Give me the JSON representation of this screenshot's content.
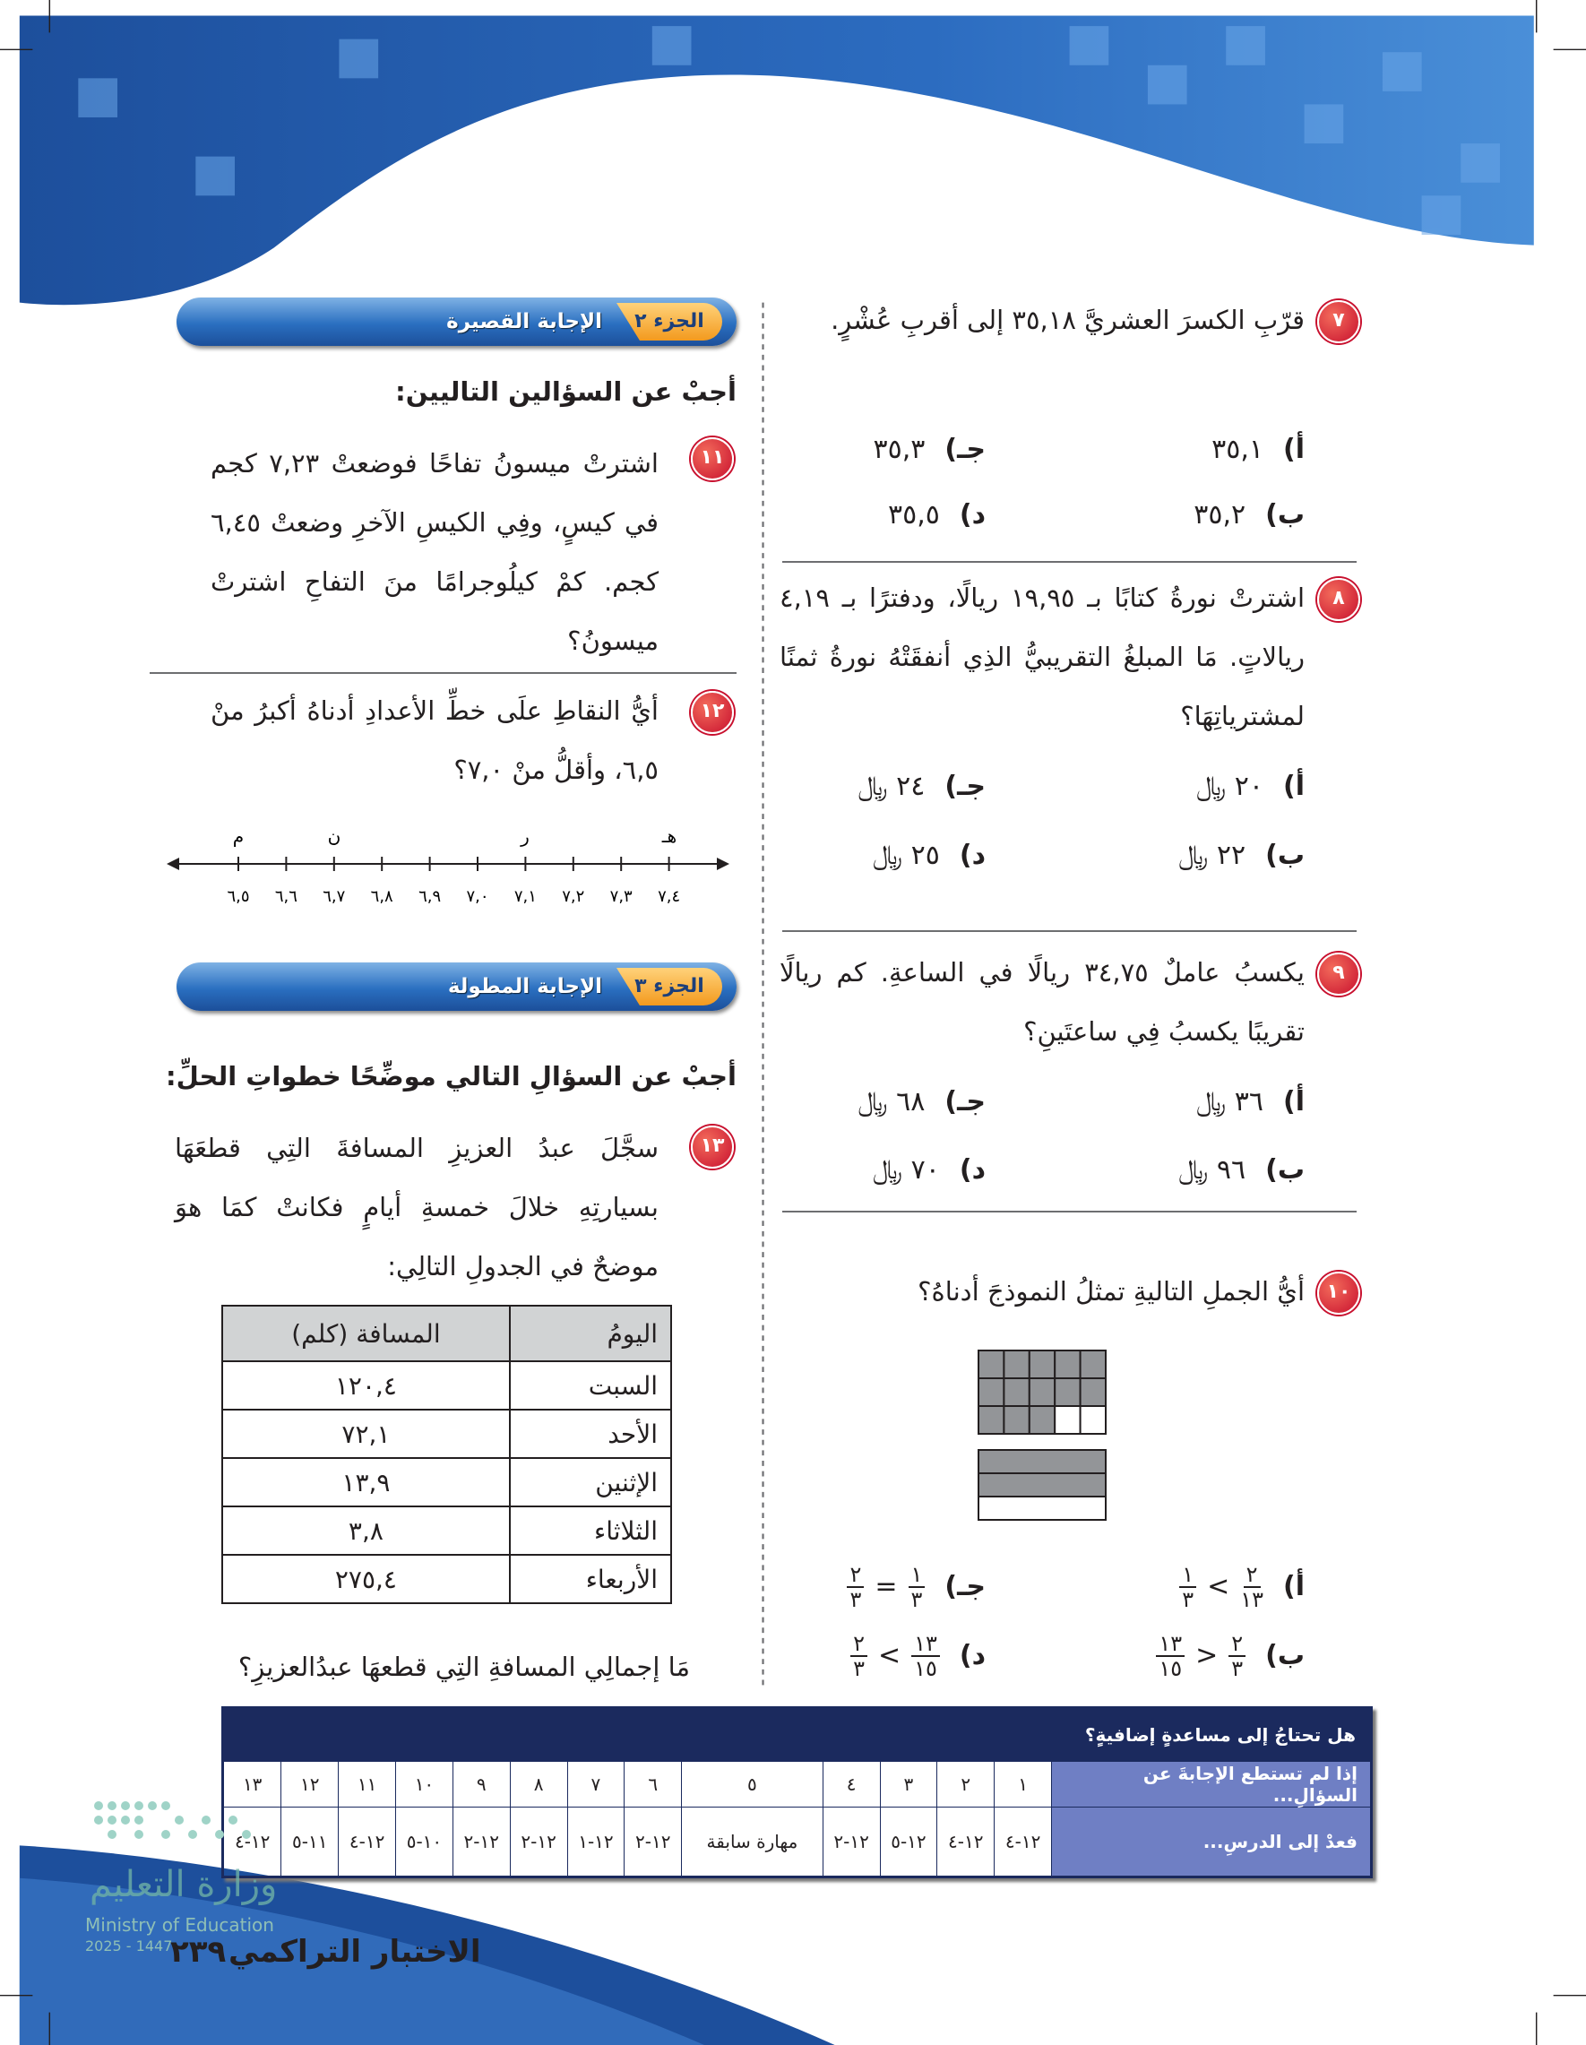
{
  "section2": {
    "part": "الجزء ٢",
    "title": "الإجابة القصيرة",
    "instruction": "أجبْ عن السؤالين التاليين:"
  },
  "section3": {
    "part": "الجزء ٣",
    "title": "الإجابة المطولة",
    "instruction": "أجبْ عن السؤالِ التالي موضِّحًا خطواتِ الحلِّ:"
  },
  "q7": {
    "number": "٧",
    "text": "قرّبِ الكسرَ العشريَّ ٣٥,١٨ إلى أقربِ عُشْرٍ.",
    "options": [
      {
        "letter": "أ)",
        "text": "٣٥,١"
      },
      {
        "letter": "ب)",
        "text": "٣٥,٢"
      },
      {
        "letter": "جـ)",
        "text": "٣٥,٣"
      },
      {
        "letter": "د)",
        "text": "٣٥,٥"
      }
    ]
  },
  "q8": {
    "number": "٨",
    "text": "اشترتْ نورةُ كتابًا بـ ١٩,٩٥ ريالًا، ودفترًا بـ ٤,١٩ ريالاتٍ. مَا المبلغُ التقريبيُّ الذِي أنفقَتْهُ نورةُ ثمنًا لمشترياتِهَا؟",
    "options": [
      {
        "letter": "أ)",
        "text": "٢٠ ﷼"
      },
      {
        "letter": "ب)",
        "text": "٢٢ ﷼"
      },
      {
        "letter": "جـ)",
        "text": "٢٤ ﷼"
      },
      {
        "letter": "د)",
        "text": "٢٥ ﷼"
      }
    ]
  },
  "q9": {
    "number": "٩",
    "text": "يكسبُ عاملٌ ٣٤,٧٥ ريالًا في الساعةِ. كم ريالًا تقريبًا يكسبُ فِي ساعتَينِ؟",
    "options": [
      {
        "letter": "أ)",
        "text": "٣٦ ﷼"
      },
      {
        "letter": "ب)",
        "text": "٩٦ ﷼"
      },
      {
        "letter": "جـ)",
        "text": "٦٨ ﷼"
      },
      {
        "letter": "د)",
        "text": "٧٠ ﷼"
      }
    ]
  },
  "q10": {
    "number": "١٠",
    "text": "أيُّ الجملِ التاليةِ تمثلُ النموذجَ أدناهُ؟",
    "options": [
      {
        "letter": "أ)",
        "left": {
          "num": "١",
          "den": "٣"
        },
        "op": "<",
        "right": {
          "num": "٢",
          "den": "١٣"
        }
      },
      {
        "letter": "ب)",
        "left": {
          "num": "١٣",
          "den": "١٥"
        },
        "op": ">",
        "right": {
          "num": "٢",
          "den": "٣"
        }
      },
      {
        "letter": "جـ)",
        "left": {
          "num": "٢",
          "den": "٣"
        },
        "op": "=",
        "right": {
          "num": "١",
          "den": "٣"
        }
      },
      {
        "letter": "د)",
        "left": {
          "num": "٢",
          "den": "٣"
        },
        "op": "<",
        "right": {
          "num": "١٣",
          "den": "١٥"
        }
      }
    ]
  },
  "q11": {
    "number": "١١",
    "text": "اشترتْ ميسونُ تفاحًا فوضعتْ ٧,٢٣ كجم في كيسٍ، وفِي الكيسِ الآخرِ وضعتْ ٦,٤٥ كجم. كمْ كيلُوجرامًا منَ التفاحِ اشترتْ ميسونُ؟"
  },
  "q12": {
    "number": "١٢",
    "text": "أيُّ النقاطِ علَى خطِّ الأعدادِ أدناهُ أكبرُ منْ ٦,٥، وأقلُّ منْ ٧,٠؟",
    "points": [
      "م",
      "ن",
      "ر",
      "هـ"
    ],
    "ticks": [
      "٦,٥",
      "٦,٦",
      "٦,٧",
      "٦,٨",
      "٦,٩",
      "٧,٠",
      "٧,١",
      "٧,٢",
      "٧,٣",
      "٧,٤"
    ]
  },
  "q13": {
    "number": "١٣",
    "text": "سجَّلَ عبدُ العزيزِ المسافةَ التِي قطعَهَا بسيارتِهِ خلالَ خمسةِ أيامٍ فكانتْ كمَا هوَ موضحٌ في الجدولِ التالِي:",
    "table": {
      "headers": [
        "اليومُ",
        "المسافة (كلم)"
      ],
      "rows": [
        [
          "السبت",
          "١٢٠,٤"
        ],
        [
          "الأحد",
          "٧٢,١"
        ],
        [
          "الإثنين",
          "١٣,٩"
        ],
        [
          "الثلاثاء",
          "٣,٨"
        ],
        [
          "الأربعاء",
          "٢٧٥,٤"
        ]
      ]
    },
    "question": "مَا إجمالِي المسافةِ التِي قطعهَا عبدُالعزيزِ؟"
  },
  "help": {
    "title": "هل تحتاجُ إلى مساعدةٍ إضافيةٍ؟",
    "row1_label": "إذا لم تستطع الإجابةَ عن السؤالِ...",
    "row2_label": "فعدْ إلى الدرسِ...",
    "questions": [
      "١",
      "٢",
      "٣",
      "٤",
      "٥",
      "٦",
      "٧",
      "٨",
      "٩",
      "١٠",
      "١١",
      "١٢",
      "١٣"
    ],
    "lessons": [
      "١٢-٤",
      "١٢-٤",
      "١٢-٥",
      "١٢-٢",
      "مهارة سابقة",
      "١٢-٢",
      "١٢-١",
      "١٢-٢",
      "١٢-٢",
      "١٠-٥",
      "١٢-٤",
      "١١-٥",
      "١٢-٤"
    ]
  },
  "footer": {
    "title": "الاختبار التراكمي",
    "page": "٢٣٩",
    "ministry_ar": "وزارة التعليم",
    "ministry_en": "Ministry of Education",
    "year": "2025 - 1447"
  }
}
